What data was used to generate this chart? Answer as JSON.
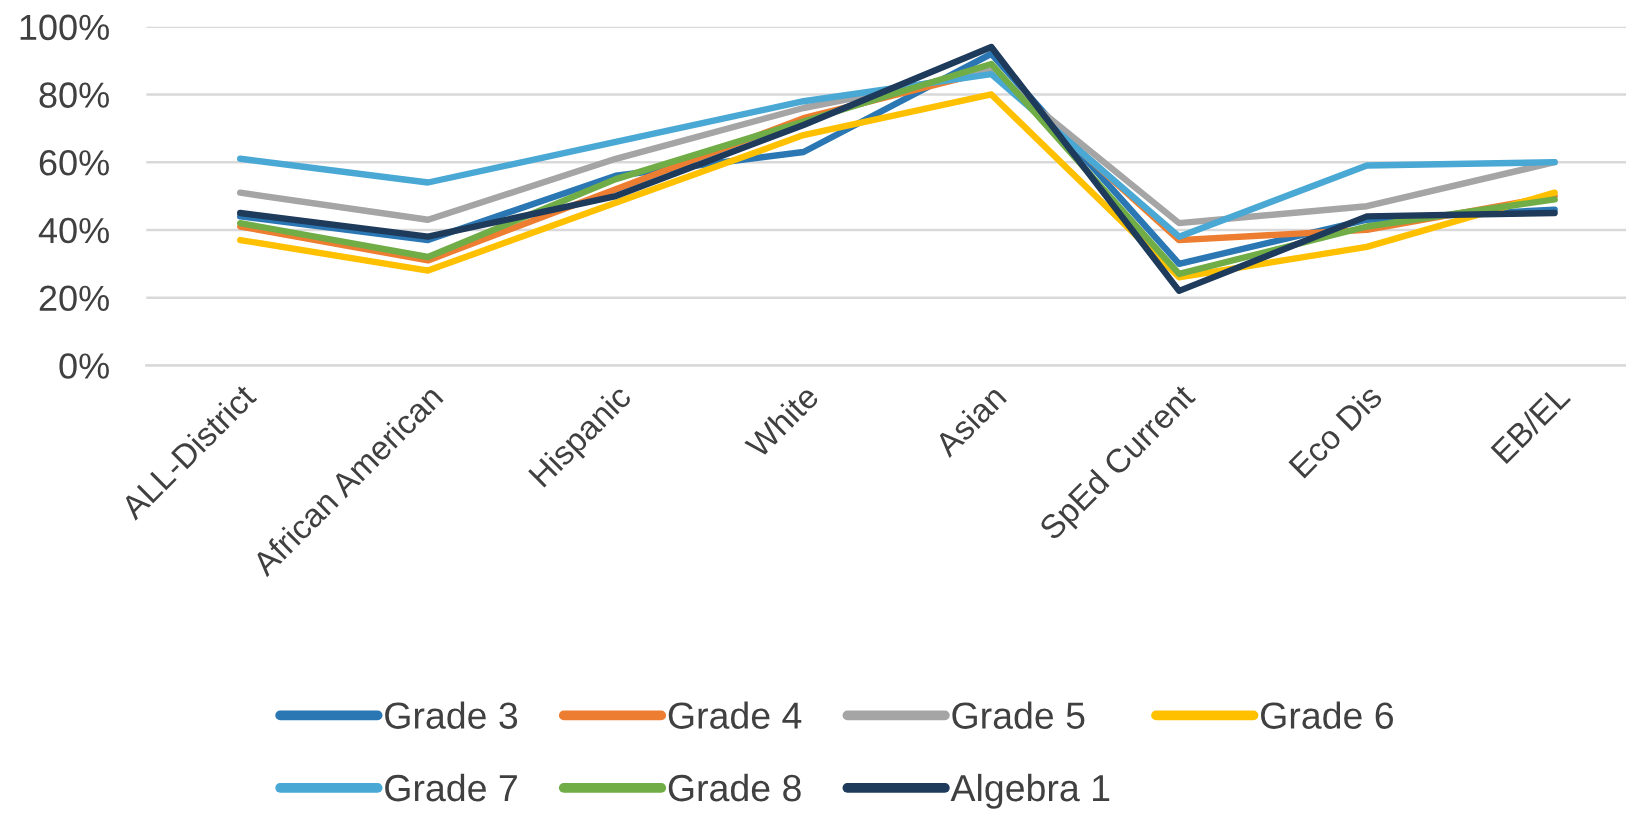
{
  "chart_data": {
    "type": "line",
    "categories": [
      "ALL-District",
      "African American",
      "Hispanic",
      "White",
      "Asian",
      "SpEd Current",
      "Eco Dis",
      "EB/EL"
    ],
    "series": [
      {
        "name": "Grade 3",
        "color": "#2a77b4",
        "values": [
          44,
          37,
          56,
          63,
          92,
          30,
          43,
          46
        ]
      },
      {
        "name": "Grade 4",
        "color": "#ed7d31",
        "values": [
          41,
          31,
          52,
          73,
          87,
          37,
          40,
          50
        ]
      },
      {
        "name": "Grade 5",
        "color": "#a5a5a5",
        "values": [
          51,
          43,
          61,
          76,
          87,
          42,
          47,
          60
        ]
      },
      {
        "name": "Grade 6",
        "color": "#ffc000",
        "values": [
          37,
          28,
          48,
          68,
          80,
          26,
          35,
          51
        ]
      },
      {
        "name": "Grade 7",
        "color": "#4aa8d4",
        "values": [
          61,
          54,
          66,
          78,
          86,
          38,
          59,
          60
        ]
      },
      {
        "name": "Grade 8",
        "color": "#70ad47",
        "values": [
          42,
          32,
          55,
          72,
          89,
          27,
          41,
          49
        ]
      },
      {
        "name": "Algebra 1",
        "color": "#1f3b5c",
        "values": [
          45,
          38,
          50,
          71,
          94,
          22,
          44,
          45
        ]
      }
    ],
    "ylim": [
      0,
      100
    ],
    "yticks": [
      {
        "value": 0,
        "label": "0%"
      },
      {
        "value": 20,
        "label": "20%"
      },
      {
        "value": 40,
        "label": "40%"
      },
      {
        "value": 60,
        "label": "60%"
      },
      {
        "value": 80,
        "label": "80%"
      },
      {
        "value": 100,
        "label": "100%"
      }
    ],
    "grid": "y",
    "legend": "bottom",
    "marker": "none",
    "line_style": "solid"
  }
}
